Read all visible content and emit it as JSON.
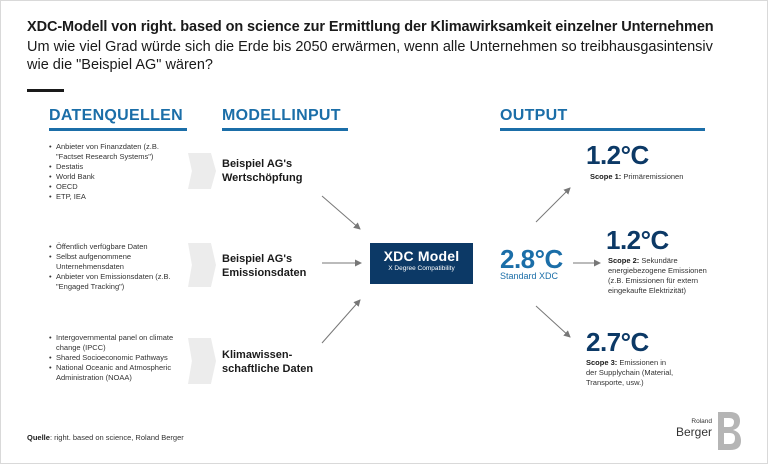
{
  "header": {
    "title": "XDC-Modell von right. based on science zur Ermittlung der Klimawirksamkeit einzelner Unternehmen",
    "subtitle": "Um wie viel Grad würde sich die Erde bis 2050 erwärmen, wenn alle Unternehmen so treibhausgasintensiv wie die \"Beispiel AG\" wären?"
  },
  "columns": {
    "sources": "DATENQUELLEN",
    "input": "MODELLINPUT",
    "output": "OUTPUT"
  },
  "sources": {
    "group1": [
      "Anbieter von Finanzdaten (z.B. \"Factset Research Systems\")",
      "Destatis",
      "World Bank",
      "OECD",
      "ETP, IEA"
    ],
    "group2": [
      "Öffentlich verfügbare Daten",
      "Selbst aufgenommene Unternehmensdaten",
      "Anbieter von Emissionsdaten (z.B. \"Engaged Tracking\")"
    ],
    "group3": [
      "Intergovernmental panel on climate change (IPCC)",
      "Shared Socioeconomic Pathways",
      "National Oceanic and Atmospheric Administration (NOAA)"
    ]
  },
  "inputs": {
    "i1_line1": "Beispiel AG's",
    "i1_line2": "Wertschöpfung",
    "i2_line1": "Beispiel AG's",
    "i2_line2": "Emissionsdaten",
    "i3_line1": "Klimawissen-",
    "i3_line2": "schaftliche Daten"
  },
  "model": {
    "name": "XDC Model",
    "subname": "X Degree Compatibility"
  },
  "result": {
    "value": "2.8°C",
    "label": "Standard XDC"
  },
  "outputs": {
    "scope1": {
      "value": "1.2°C",
      "scope": "Scope 1:",
      "desc": "Primäremissionen"
    },
    "scope2": {
      "value": "1.2°C",
      "scope": "Scope 2:",
      "desc1": "Sekundäre",
      "desc2": "energiebezogene Emissionen",
      "desc3": "(z.B. Emissionen für extern",
      "desc4": "eingekaufte Elektrizität)"
    },
    "scope3": {
      "value": "2.7°C",
      "scope": "Scope 3:",
      "desc1": "Emissionen in",
      "desc2": "der Supplychain (Material,",
      "desc3": "Transporte, usw.)"
    }
  },
  "footer": {
    "source_label": "Quelle",
    "source_text": ": right. based on science, Roland Berger",
    "logo_small": "Roland",
    "logo_big": "Berger"
  },
  "colors": {
    "accent": "#1b6ea8",
    "navy": "#0c3966",
    "chevron": "#ececec"
  }
}
